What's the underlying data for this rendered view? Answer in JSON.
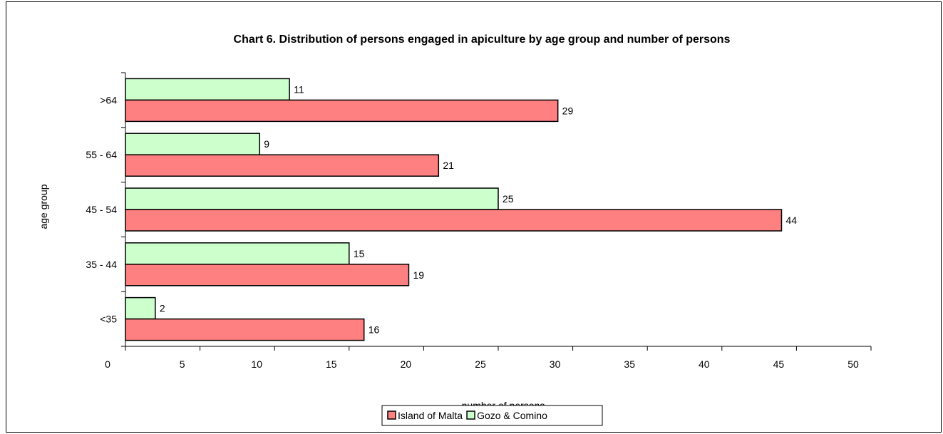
{
  "chart_data": {
    "type": "bar",
    "orientation": "horizontal",
    "title": "Chart 6.  Distribution of persons engaged in apiculture by age group and number of persons",
    "xlabel": "number of persons",
    "ylabel": "age group",
    "categories": [
      "<35",
      "35 - 44",
      "45 - 54",
      "55 - 64",
      ">64"
    ],
    "series": [
      {
        "name": "Island of Malta",
        "values": [
          16,
          19,
          44,
          21,
          29
        ],
        "color": "#ff8080"
      },
      {
        "name": "Gozo & Comino",
        "values": [
          2,
          15,
          25,
          9,
          11
        ],
        "color": "#ccffcc"
      }
    ],
    "xlim": [
      0,
      50
    ],
    "xticks": [
      "0",
      "5",
      "10",
      "15",
      "20",
      "25",
      "30",
      "35",
      "40",
      "45",
      "50"
    ],
    "grid": false,
    "legend_position": "bottom"
  }
}
